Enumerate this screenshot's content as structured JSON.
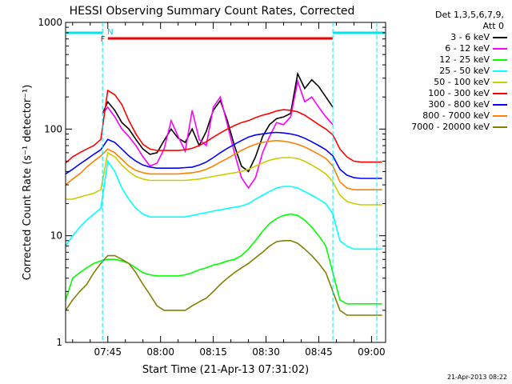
{
  "chart_data": {
    "type": "line",
    "title": "HESSI Observing Summary Count Rates, Corrected",
    "xlabel": "Start Time (21-Apr-13 07:31:02)",
    "ylabel": "Corrected Count Rate (s⁻¹ detector⁻¹)",
    "y_scale": "log",
    "ylim": [
      1,
      1000
    ],
    "xlim_minutes": [
      -12,
      79
    ],
    "x_tick_labels": [
      "07:45",
      "08:00",
      "08:15",
      "08:30",
      "08:45",
      "09:00"
    ],
    "x_tick_minutes": [
      0,
      15,
      30,
      45,
      60,
      75
    ],
    "y_tick_labels": [
      "1",
      "10",
      "100",
      "1000"
    ],
    "y_tick_values": [
      1,
      10,
      100,
      1000
    ],
    "grid": false,
    "legend_position": "right-outside",
    "legend_header": [
      "Det 1,3,5,6,7,9,",
      "Att 0"
    ],
    "annotations": {
      "flare_flag": "F",
      "night_flag": "N",
      "flare_bar_minutes": [
        0,
        64
      ],
      "night_bar_minutes": [
        [
          -12,
          -1.5
        ],
        [
          64,
          79
        ]
      ],
      "night_boundaries_minutes": [
        -1.5,
        64,
        76.5
      ]
    },
    "series": [
      {
        "name": "3 - 6 keV",
        "color": "#000000",
        "x": [
          -1.5,
          0,
          2,
          4,
          6,
          8,
          10,
          12,
          14,
          16,
          18,
          20,
          22,
          24,
          26,
          28,
          30,
          32,
          34,
          36,
          38,
          40,
          42,
          44,
          46,
          48,
          50,
          52,
          54,
          56,
          58,
          60,
          62,
          64
        ],
        "y": [
          140,
          180,
          150,
          115,
          100,
          80,
          65,
          58,
          60,
          78,
          100,
          82,
          75,
          100,
          70,
          95,
          150,
          185,
          120,
          70,
          45,
          40,
          55,
          85,
          110,
          125,
          130,
          140,
          330,
          240,
          290,
          250,
          200,
          160
        ]
      },
      {
        "name": "6 - 12 keV",
        "color": "#ff00ff",
        "x": [
          -1.5,
          0,
          2,
          4,
          6,
          8,
          10,
          12,
          14,
          16,
          18,
          20,
          22,
          24,
          26,
          28,
          30,
          32,
          34,
          36,
          38,
          40,
          42,
          44,
          46,
          48,
          50,
          52,
          54,
          56,
          58,
          60,
          62,
          64
        ],
        "y": [
          140,
          160,
          130,
          100,
          85,
          70,
          55,
          45,
          48,
          65,
          120,
          85,
          62,
          150,
          80,
          70,
          160,
          200,
          110,
          60,
          35,
          28,
          35,
          60,
          85,
          115,
          110,
          130,
          280,
          180,
          200,
          160,
          130,
          110
        ]
      },
      {
        "name": "12 - 25 keV",
        "color": "#00ff00",
        "x": [
          -12,
          -10,
          -8,
          -6,
          -4,
          -2,
          0,
          2,
          4,
          6,
          8,
          10,
          12,
          14,
          16,
          18,
          20,
          22,
          24,
          26,
          28,
          30,
          32,
          34,
          36,
          38,
          40,
          42,
          44,
          46,
          48,
          50,
          52,
          54,
          56,
          58,
          60,
          62,
          64,
          66,
          68,
          70,
          72,
          74,
          76,
          78
        ],
        "y": [
          2.5,
          4,
          4.5,
          5,
          5.5,
          5.8,
          6,
          6,
          5.8,
          5.5,
          5,
          4.5,
          4.3,
          4.2,
          4.2,
          4.2,
          4.2,
          4.3,
          4.5,
          4.8,
          5,
          5.3,
          5.5,
          5.8,
          6,
          6.5,
          7.5,
          9,
          11,
          13,
          14.5,
          15.5,
          16,
          15.5,
          14,
          12,
          10,
          8,
          4.5,
          2.5,
          2.3,
          2.3,
          2.3,
          2.3,
          2.3,
          2.3
        ]
      },
      {
        "name": "25 - 50 keV",
        "color": "#00ffff",
        "x": [
          -12,
          -10,
          -8,
          -6,
          -4,
          -2,
          0,
          2,
          4,
          6,
          8,
          10,
          12,
          14,
          16,
          18,
          20,
          22,
          24,
          26,
          28,
          30,
          32,
          34,
          36,
          38,
          40,
          42,
          44,
          46,
          48,
          50,
          52,
          54,
          56,
          58,
          60,
          62,
          64,
          66,
          68,
          70,
          72,
          74,
          76,
          78
        ],
        "y": [
          8,
          10,
          12,
          14,
          16,
          18,
          50,
          40,
          28,
          22,
          18,
          16,
          15,
          15,
          15,
          15,
          15,
          15,
          15.5,
          16,
          16.5,
          17,
          17.5,
          18,
          18.5,
          19,
          20,
          22,
          24,
          26,
          28,
          29,
          29,
          28,
          26,
          24,
          22,
          20,
          16,
          9,
          8,
          7.5,
          7.5,
          7.5,
          7.5,
          7.5
        ]
      },
      {
        "name": "50 - 100 keV",
        "color": "#cccc00",
        "x": [
          -12,
          -10,
          -8,
          -6,
          -4,
          -2,
          0,
          2,
          4,
          6,
          8,
          10,
          12,
          14,
          16,
          18,
          20,
          22,
          24,
          26,
          28,
          30,
          32,
          34,
          36,
          38,
          40,
          42,
          44,
          46,
          48,
          50,
          52,
          54,
          56,
          58,
          60,
          62,
          64,
          66,
          68,
          70,
          72,
          74,
          76,
          78
        ],
        "y": [
          22,
          22,
          23,
          24,
          25,
          27,
          60,
          55,
          46,
          40,
          36,
          34,
          33,
          33,
          33,
          33,
          33,
          33,
          33.5,
          34,
          35,
          36,
          37,
          38,
          39,
          40,
          42,
          45,
          48,
          51,
          53,
          54,
          54,
          53,
          50,
          46,
          42,
          38,
          32,
          24,
          21,
          20,
          19.5,
          19.5,
          19.5,
          19.5
        ]
      },
      {
        "name": "100 - 300 keV",
        "color": "#ff0000",
        "x": [
          -12,
          -10,
          -8,
          -6,
          -4,
          -2,
          0,
          2,
          4,
          6,
          8,
          10,
          12,
          14,
          16,
          18,
          20,
          22,
          24,
          26,
          28,
          30,
          32,
          34,
          36,
          38,
          40,
          42,
          44,
          46,
          48,
          50,
          52,
          54,
          56,
          58,
          60,
          62,
          64,
          66,
          68,
          70,
          72,
          74,
          76,
          78
        ],
        "y": [
          48,
          55,
          60,
          65,
          70,
          80,
          230,
          210,
          170,
          120,
          90,
          72,
          65,
          63,
          63,
          63,
          63,
          64,
          66,
          70,
          76,
          84,
          92,
          100,
          108,
          115,
          120,
          128,
          135,
          140,
          148,
          152,
          150,
          145,
          135,
          122,
          110,
          100,
          88,
          65,
          55,
          50,
          49,
          49,
          49,
          49
        ]
      },
      {
        "name": "300 - 800 keV",
        "color": "#0000ff",
        "x": [
          -12,
          -10,
          -8,
          -6,
          -4,
          -2,
          0,
          2,
          4,
          6,
          8,
          10,
          12,
          14,
          16,
          18,
          20,
          22,
          24,
          26,
          28,
          30,
          32,
          34,
          36,
          38,
          40,
          42,
          44,
          46,
          48,
          50,
          52,
          54,
          56,
          58,
          60,
          62,
          64,
          66,
          68,
          70,
          72,
          74,
          76,
          78
        ],
        "y": [
          38,
          42,
          47,
          52,
          58,
          64,
          80,
          75,
          65,
          56,
          50,
          46,
          44,
          43,
          43,
          43,
          43,
          43.5,
          44,
          46,
          49,
          54,
          60,
          66,
          72,
          78,
          84,
          88,
          90,
          92,
          93,
          92,
          90,
          87,
          82,
          76,
          70,
          64,
          56,
          42,
          37,
          35,
          34.5,
          34.5,
          34.5,
          34.5
        ]
      },
      {
        "name": "800 - 7000 keV",
        "color": "#ff8000",
        "x": [
          -12,
          -10,
          -8,
          -6,
          -4,
          -2,
          0,
          2,
          4,
          6,
          8,
          10,
          12,
          14,
          16,
          18,
          20,
          22,
          24,
          26,
          28,
          30,
          32,
          34,
          36,
          38,
          40,
          42,
          44,
          46,
          48,
          50,
          52,
          54,
          56,
          58,
          60,
          62,
          64,
          66,
          68,
          70,
          72,
          74,
          76,
          78
        ],
        "y": [
          30,
          34,
          38,
          44,
          50,
          56,
          65,
          60,
          52,
          45,
          41,
          39,
          38,
          38,
          38,
          38,
          38,
          38.5,
          39,
          40,
          42,
          45,
          49,
          53,
          58,
          63,
          68,
          72,
          75,
          77,
          78,
          77,
          75,
          72,
          68,
          63,
          58,
          53,
          45,
          32,
          28,
          27,
          27,
          27,
          27,
          27
        ]
      },
      {
        "name": "7000 - 20000 keV",
        "color": "#808000",
        "x": [
          -12,
          -10,
          -8,
          -6,
          -4,
          -2,
          0,
          2,
          4,
          6,
          8,
          10,
          12,
          14,
          16,
          18,
          20,
          22,
          24,
          26,
          28,
          30,
          32,
          34,
          36,
          38,
          40,
          42,
          44,
          46,
          48,
          50,
          52,
          54,
          56,
          58,
          60,
          62,
          64,
          66,
          68,
          70,
          72,
          74,
          76,
          78
        ],
        "y": [
          2,
          2.5,
          3,
          3.5,
          4.5,
          5.5,
          6.5,
          6.5,
          6,
          5.5,
          4.5,
          3.5,
          2.8,
          2.2,
          2,
          2,
          2,
          2,
          2.2,
          2.4,
          2.6,
          3,
          3.5,
          4,
          4.5,
          5,
          5.5,
          6.2,
          7,
          8,
          8.8,
          9,
          9,
          8.5,
          7.5,
          6.5,
          5.5,
          4.5,
          3,
          2,
          1.8,
          1.8,
          1.8,
          1.8,
          1.8,
          1.8
        ]
      }
    ]
  },
  "footer": {
    "timestamp": "21-Apr-2013 08:22"
  }
}
